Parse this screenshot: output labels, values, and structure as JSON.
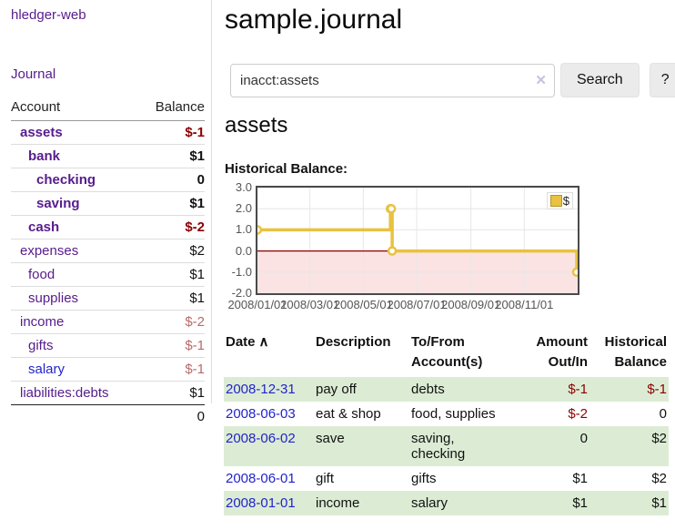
{
  "colors": {
    "link_purple": "#571c8d",
    "link_blue": "#2323cc",
    "negative_strong": "#8b0000",
    "negative_soft": "#b96a6a",
    "row_green": "#dcecd4",
    "chart_line": "#e8c240",
    "chart_negative_fill": "#fbe3e3",
    "chart_zero_line": "#8b0000"
  },
  "icons": {
    "clear": "✕",
    "sort_asc": "∧"
  },
  "sidebar": {
    "brand": "hledger-web",
    "journal_link": "Journal",
    "accounts_header": {
      "account": "Account",
      "balance": "Balance"
    },
    "accounts": [
      {
        "name": "assets",
        "balance": "$-1"
      },
      {
        "name": "bank",
        "balance": "$1"
      },
      {
        "name": "checking",
        "balance": "0"
      },
      {
        "name": "saving",
        "balance": "$1"
      },
      {
        "name": "cash",
        "balance": "$-2"
      },
      {
        "name": "expenses",
        "balance": "$2"
      },
      {
        "name": "food",
        "balance": "$1"
      },
      {
        "name": "supplies",
        "balance": "$1"
      },
      {
        "name": "income",
        "balance": "$-2"
      },
      {
        "name": "gifts",
        "balance": "$-1"
      },
      {
        "name": "salary",
        "balance": "$-1"
      },
      {
        "name": "liabilities:debts",
        "balance": "$1"
      }
    ],
    "total": "0"
  },
  "header": {
    "title": "sample.journal"
  },
  "search": {
    "value": "inacct:assets",
    "button": "Search",
    "help": "?"
  },
  "account_page": {
    "heading": "assets",
    "chart_label": "Historical Balance:"
  },
  "chart_data": {
    "type": "line",
    "step": true,
    "legend": [
      "$"
    ],
    "x_min": "2008-01-01",
    "x_max": "2009-01-01",
    "ylim": [
      -2.0,
      3.0
    ],
    "y_ticks": [
      3.0,
      2.0,
      1.0,
      0.0,
      -1.0,
      -2.0
    ],
    "x_ticks": [
      {
        "date": "2008-01-01",
        "label": "2008/01/01"
      },
      {
        "date": "2008-03-01",
        "label": "2008/03/01"
      },
      {
        "date": "2008-05-01",
        "label": "2008/05/01"
      },
      {
        "date": "2008-07-01",
        "label": "2008/07/01"
      },
      {
        "date": "2008-09-01",
        "label": "2008/09/01"
      },
      {
        "date": "2008-11-01",
        "label": "2008/11/01"
      }
    ],
    "series": [
      {
        "name": "$",
        "points": [
          [
            "2008-01-01",
            1
          ],
          [
            "2008-06-01",
            2
          ],
          [
            "2008-06-02",
            2
          ],
          [
            "2008-06-03",
            0
          ],
          [
            "2008-12-31",
            -1
          ]
        ]
      }
    ],
    "grid": true,
    "legend_position": "top-right"
  },
  "register_table": {
    "headers": {
      "date": "Date",
      "description": "Description",
      "tofrom": "To/From\nAccount(s)",
      "amount": "Amount\nOut/In",
      "historical": "Historical\nBalance"
    },
    "rows": [
      {
        "date": "2008-12-31",
        "description": "pay off",
        "tofrom": "debts",
        "amount": "$-1",
        "balance": "$-1"
      },
      {
        "date": "2008-06-03",
        "description": "eat & shop",
        "tofrom": "food, supplies",
        "amount": "$-2",
        "balance": "0"
      },
      {
        "date": "2008-06-02",
        "description": "save",
        "tofrom": "saving,\nchecking",
        "amount": "0",
        "balance": "$2"
      },
      {
        "date": "2008-06-01",
        "description": "gift",
        "tofrom": "gifts",
        "amount": "$1",
        "balance": "$2"
      },
      {
        "date": "2008-01-01",
        "description": "income",
        "tofrom": "salary",
        "amount": "$1",
        "balance": "$1"
      }
    ]
  }
}
